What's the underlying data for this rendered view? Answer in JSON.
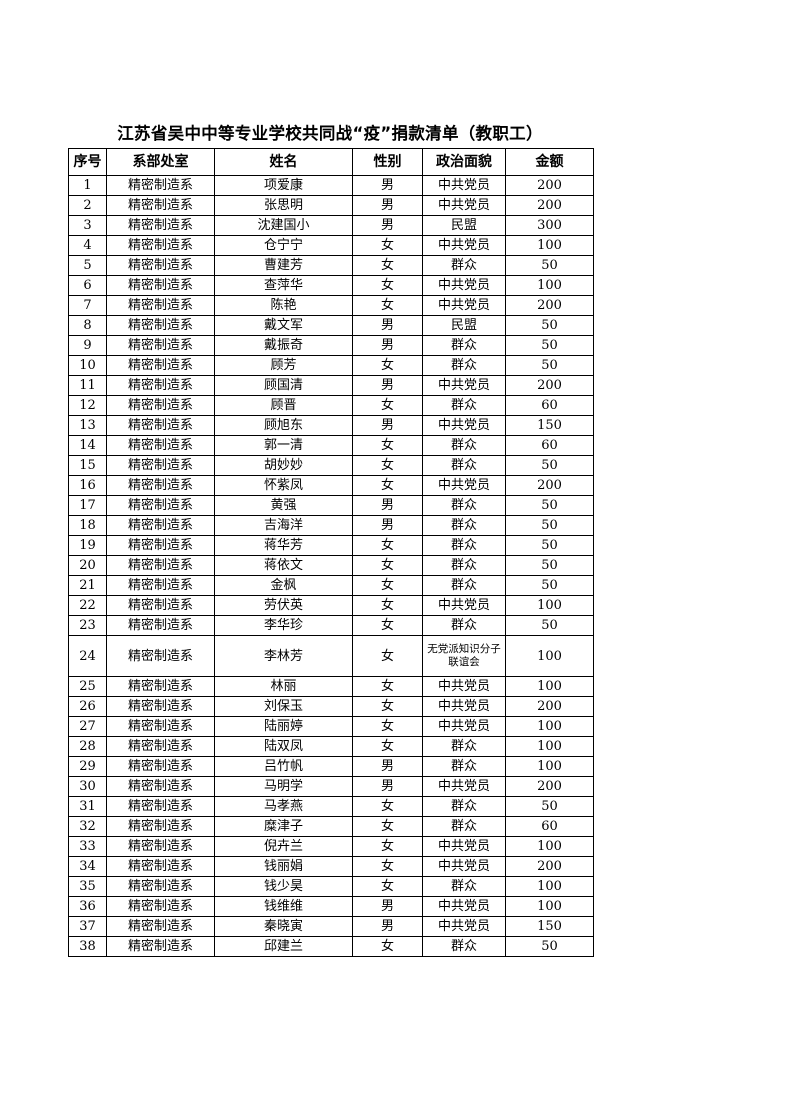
{
  "title": "江苏省吴中中等专业学校共同战“疫”捐款清单（教职工）",
  "columns": [
    "序号",
    "系部处室",
    "姓名",
    "性别",
    "政治面貌",
    "金额"
  ],
  "rows": [
    [
      "1",
      "精密制造系",
      "项爱康",
      "男",
      "中共党员",
      "200"
    ],
    [
      "2",
      "精密制造系",
      "张思明",
      "男",
      "中共党员",
      "200"
    ],
    [
      "3",
      "精密制造系",
      "沈建国小",
      "男",
      "民盟",
      "300"
    ],
    [
      "4",
      "精密制造系",
      "仓宁宁",
      "女",
      "中共党员",
      "100"
    ],
    [
      "5",
      "精密制造系",
      "曹建芳",
      "女",
      "群众",
      "50"
    ],
    [
      "6",
      "精密制造系",
      "查萍华",
      "女",
      "中共党员",
      "100"
    ],
    [
      "7",
      "精密制造系",
      "陈艳",
      "女",
      "中共党员",
      "200"
    ],
    [
      "8",
      "精密制造系",
      "戴文军",
      "男",
      "民盟",
      "50"
    ],
    [
      "9",
      "精密制造系",
      "戴振奇",
      "男",
      "群众",
      "50"
    ],
    [
      "10",
      "精密制造系",
      "顾芳",
      "女",
      "群众",
      "50"
    ],
    [
      "11",
      "精密制造系",
      "顾国清",
      "男",
      "中共党员",
      "200"
    ],
    [
      "12",
      "精密制造系",
      "顾晋",
      "女",
      "群众",
      "60"
    ],
    [
      "13",
      "精密制造系",
      "顾旭东",
      "男",
      "中共党员",
      "150"
    ],
    [
      "14",
      "精密制造系",
      "郭一清",
      "女",
      "群众",
      "60"
    ],
    [
      "15",
      "精密制造系",
      "胡妙妙",
      "女",
      "群众",
      "50"
    ],
    [
      "16",
      "精密制造系",
      "怀紫凤",
      "女",
      "中共党员",
      "200"
    ],
    [
      "17",
      "精密制造系",
      "黄强",
      "男",
      "群众",
      "50"
    ],
    [
      "18",
      "精密制造系",
      "吉海洋",
      "男",
      "群众",
      "50"
    ],
    [
      "19",
      "精密制造系",
      "蒋华芳",
      "女",
      "群众",
      "50"
    ],
    [
      "20",
      "精密制造系",
      "蒋依文",
      "女",
      "群众",
      "50"
    ],
    [
      "21",
      "精密制造系",
      "金枫",
      "女",
      "群众",
      "50"
    ],
    [
      "22",
      "精密制造系",
      "劳伏英",
      "女",
      "中共党员",
      "100"
    ],
    [
      "23",
      "精密制造系",
      "李华珍",
      "女",
      "群众",
      "50"
    ],
    [
      "24",
      "精密制造系",
      "李林芳",
      "女",
      "无党派知识分子联谊会",
      "100"
    ],
    [
      "25",
      "精密制造系",
      "林丽",
      "女",
      "中共党员",
      "100"
    ],
    [
      "26",
      "精密制造系",
      "刘保玉",
      "女",
      "中共党员",
      "200"
    ],
    [
      "27",
      "精密制造系",
      "陆丽婷",
      "女",
      "中共党员",
      "100"
    ],
    [
      "28",
      "精密制造系",
      "陆双凤",
      "女",
      "群众",
      "100"
    ],
    [
      "29",
      "精密制造系",
      "吕竹帆",
      "男",
      "群众",
      "100"
    ],
    [
      "30",
      "精密制造系",
      "马明学",
      "男",
      "中共党员",
      "200"
    ],
    [
      "31",
      "精密制造系",
      "马孝燕",
      "女",
      "群众",
      "50"
    ],
    [
      "32",
      "精密制造系",
      "糜津子",
      "女",
      "群众",
      "60"
    ],
    [
      "33",
      "精密制造系",
      "倪卉兰",
      "女",
      "中共党员",
      "100"
    ],
    [
      "34",
      "精密制造系",
      "钱丽娟",
      "女",
      "中共党员",
      "200"
    ],
    [
      "35",
      "精密制造系",
      "钱少昊",
      "女",
      "群众",
      "100"
    ],
    [
      "36",
      "精密制造系",
      "钱维维",
      "男",
      "中共党员",
      "100"
    ],
    [
      "37",
      "精密制造系",
      "秦晓寅",
      "男",
      "中共党员",
      "150"
    ],
    [
      "38",
      "精密制造系",
      "邱建兰",
      "女",
      "群众",
      "50"
    ]
  ]
}
